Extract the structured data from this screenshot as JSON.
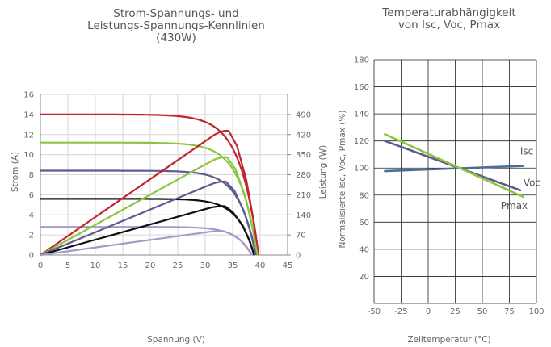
{
  "chart_data": [
    {
      "type": "line",
      "title": [
        "Strom-Spannungs- und",
        "Leistungs-Spannungs-Kennlinien",
        "(430W)"
      ],
      "xlabel": "Spannung (V)",
      "ylabel": "Strom (A)",
      "y2label": "Leistung (W)",
      "xlim": [
        0,
        45
      ],
      "ylim": [
        0,
        16
      ],
      "y2lim": [
        0,
        560
      ],
      "xticks": [
        "0",
        "5",
        "10",
        "15",
        "20",
        "25",
        "30",
        "35",
        "40",
        "45"
      ],
      "yticks": [
        "0",
        "2",
        "4",
        "6",
        "8",
        "10",
        "12",
        "14",
        "16"
      ],
      "y2ticks": [
        "0",
        "70",
        "140",
        "210",
        "280",
        "350",
        "420",
        "490"
      ],
      "grid": true,
      "series": [
        {
          "kind": "iv",
          "color": "#c0262d",
          "isc": 14.0,
          "voc": 39.7,
          "vk": 3.3
        },
        {
          "kind": "iv",
          "color": "#8cc63f",
          "isc": 11.2,
          "voc": 39.5,
          "vk": 3.1
        },
        {
          "kind": "iv",
          "color": "#5e5c8e",
          "isc": 8.4,
          "voc": 39.2,
          "vk": 3.0
        },
        {
          "kind": "iv",
          "color": "#111111",
          "isc": 5.6,
          "voc": 38.9,
          "vk": 2.9
        },
        {
          "kind": "iv",
          "color": "#a59ac7",
          "isc": 2.8,
          "voc": 38.5,
          "vk": 2.8
        },
        {
          "kind": "pv",
          "color": "#c0262d",
          "points": [
            [
              0,
              0
            ],
            [
              33.3,
              437
            ],
            [
              35.8,
              380
            ],
            [
              37.5,
              260
            ],
            [
              38.9,
              110
            ],
            [
              39.7,
              0
            ]
          ]
        },
        {
          "kind": "pv",
          "color": "#8cc63f",
          "points": [
            [
              0,
              0
            ],
            [
              33.0,
              344
            ],
            [
              35.5,
              300
            ],
            [
              37.3,
              205
            ],
            [
              38.7,
              85
            ],
            [
              39.5,
              0
            ]
          ]
        },
        {
          "kind": "pv",
          "color": "#5e5c8e",
          "points": [
            [
              0,
              0
            ],
            [
              32.8,
              258
            ],
            [
              35.3,
              225
            ],
            [
              37.0,
              155
            ],
            [
              38.5,
              65
            ],
            [
              39.2,
              0
            ]
          ]
        },
        {
          "kind": "pv",
          "color": "#111111",
          "points": [
            [
              0,
              0
            ],
            [
              32.6,
              172
            ],
            [
              35.0,
              150
            ],
            [
              36.8,
              104
            ],
            [
              38.2,
              44
            ],
            [
              38.9,
              0
            ]
          ]
        },
        {
          "kind": "pv",
          "color": "#a59ac7",
          "points": [
            [
              0,
              0
            ],
            [
              32.3,
              84
            ],
            [
              34.8,
              73
            ],
            [
              36.5,
              50
            ],
            [
              37.8,
              20
            ],
            [
              38.5,
              0
            ]
          ]
        }
      ]
    },
    {
      "type": "line",
      "title": [
        "Temperaturabhängigkeit",
        "von Isc, Voc, Pmax"
      ],
      "xlabel": "Zelltemperatur  (°C)",
      "ylabel": "Normalisierte Isc, Voc, Pmax (%)",
      "xlim": [
        -50,
        100
      ],
      "ylim": [
        0,
        180
      ],
      "xticks": [
        -50,
        -25,
        0,
        25,
        50,
        75,
        100
      ],
      "yticks": [
        20,
        40,
        60,
        80,
        100,
        120,
        140,
        160,
        180
      ],
      "grid": true,
      "series": [
        {
          "name": "Isc",
          "color": "#4a6e96",
          "x": [
            -40,
            88
          ],
          "y": [
            97.7,
            101.6
          ]
        },
        {
          "name": "Voc",
          "color": "#5e5c8e",
          "x": [
            -40,
            85
          ],
          "y": [
            120.0,
            83.6
          ]
        },
        {
          "name": "Pmax",
          "color": "#8cc63f",
          "x": [
            -40,
            88
          ],
          "y": [
            125.0,
            78.6
          ]
        }
      ]
    }
  ]
}
